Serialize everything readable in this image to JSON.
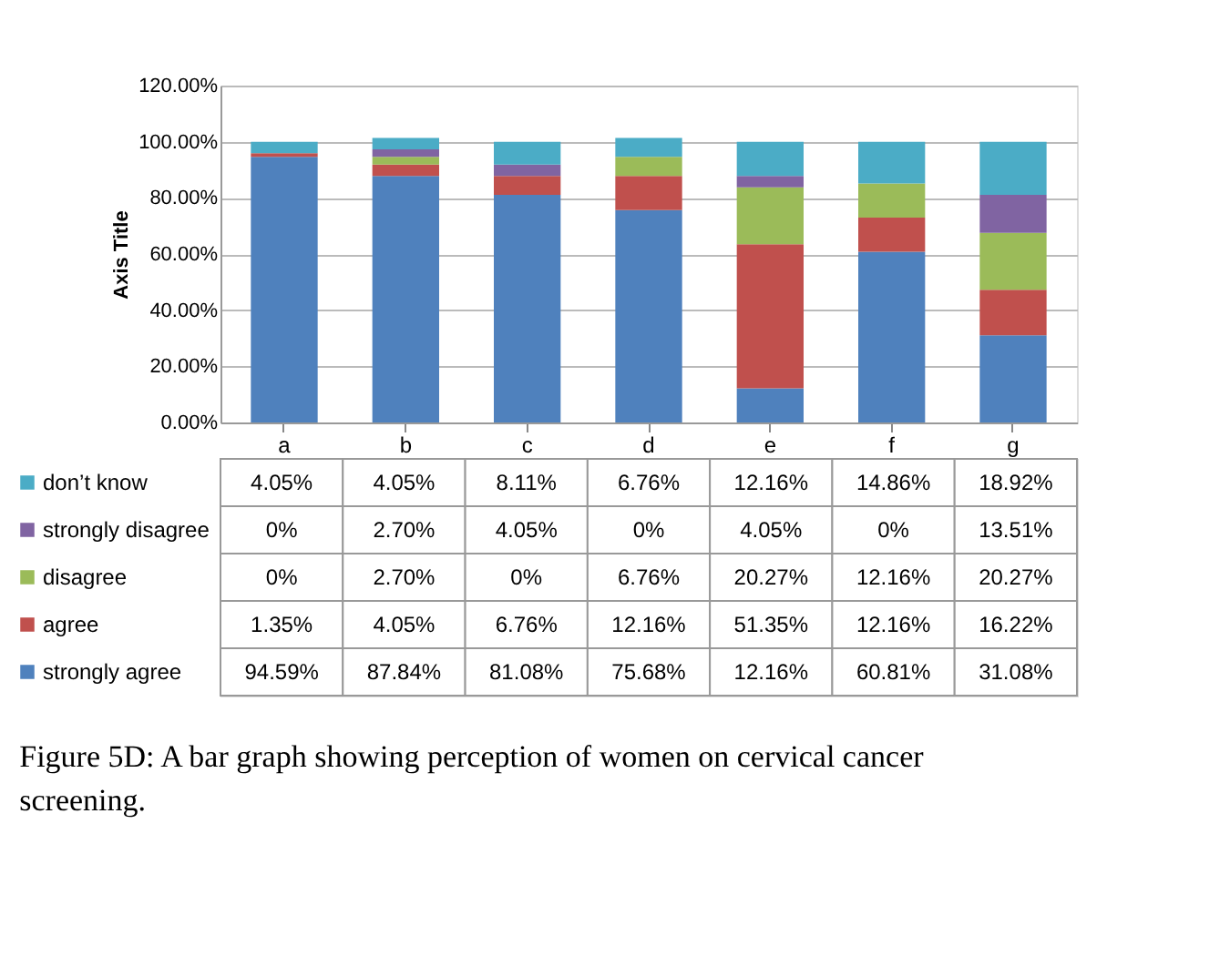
{
  "chart_data": {
    "type": "bar",
    "stacked": true,
    "ylabel": "Axis Title",
    "categories": [
      "a",
      "b",
      "c",
      "d",
      "e",
      "f",
      "g"
    ],
    "series": [
      {
        "name": "strongly agree",
        "color": "#4f81bd",
        "values": [
          94.59,
          87.84,
          81.08,
          75.68,
          12.16,
          60.81,
          31.08
        ],
        "value_labels": [
          "94.59%",
          "87.84%",
          "81.08%",
          "75.68%",
          "12.16%",
          "60.81%",
          "31.08%"
        ]
      },
      {
        "name": "agree",
        "color": "#c0504d",
        "values": [
          1.35,
          4.05,
          6.76,
          12.16,
          51.35,
          12.16,
          16.22
        ],
        "value_labels": [
          "1.35%",
          "4.05%",
          "6.76%",
          "12.16%",
          "51.35%",
          "12.16%",
          "16.22%"
        ]
      },
      {
        "name": "disagree",
        "color": "#9bbb59",
        "values": [
          0,
          2.7,
          0,
          6.76,
          20.27,
          12.16,
          20.27
        ],
        "value_labels": [
          "0%",
          "2.70%",
          "0%",
          "6.76%",
          "20.27%",
          "12.16%",
          "20.27%"
        ]
      },
      {
        "name": "strongly disagree",
        "color": "#8064a2",
        "values": [
          0,
          2.7,
          4.05,
          0,
          4.05,
          0,
          13.51
        ],
        "value_labels": [
          "0%",
          "2.70%",
          "4.05%",
          "0%",
          "4.05%",
          "0%",
          "13.51%"
        ]
      },
      {
        "name": "don’t know",
        "color": "#4bacc6",
        "values": [
          4.05,
          4.05,
          8.11,
          6.76,
          12.16,
          14.86,
          18.92
        ],
        "value_labels": [
          "4.05%",
          "4.05%",
          "8.11%",
          "6.76%",
          "12.16%",
          "14.86%",
          "18.92%"
        ]
      }
    ],
    "ylim": [
      0,
      120
    ],
    "yticks": [
      {
        "value": 0,
        "label": "0.00%"
      },
      {
        "value": 20,
        "label": "20.00%"
      },
      {
        "value": 40,
        "label": "40.00%"
      },
      {
        "value": 60,
        "label": "60.00%"
      },
      {
        "value": 80,
        "label": "80.00%"
      },
      {
        "value": 100,
        "label": "100.00%"
      },
      {
        "value": 120,
        "label": "120.00%"
      }
    ],
    "grid": "y",
    "legend": "bottom",
    "annotations": [
      "Figure 5D: A bar graph showing perception of women on cervical cancer screening."
    ]
  }
}
